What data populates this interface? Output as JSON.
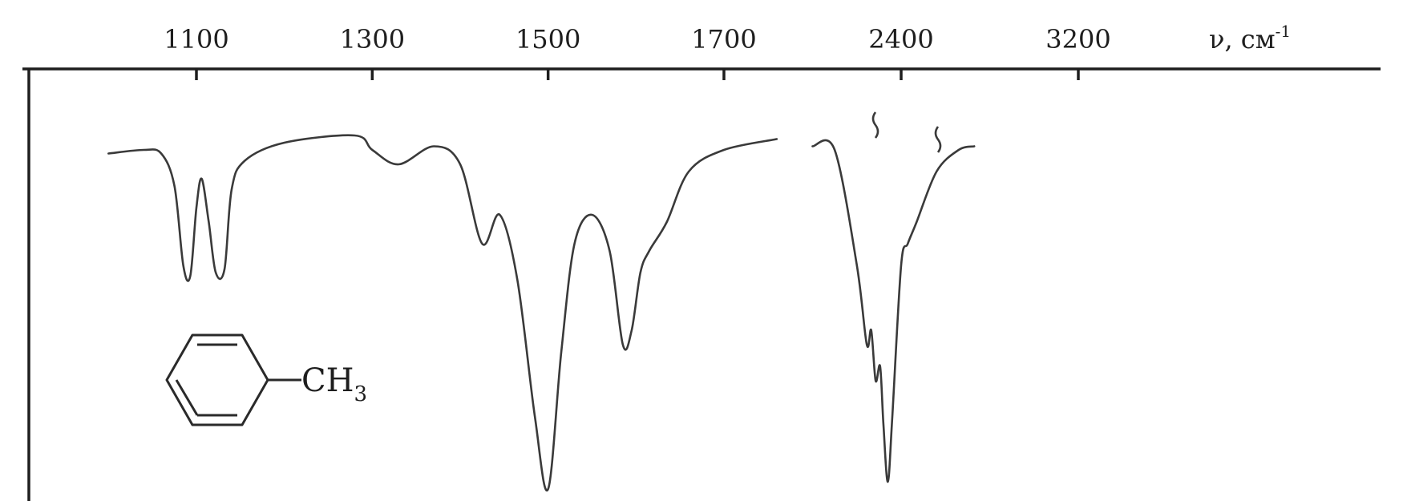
{
  "chart_data": {
    "type": "line",
    "title": "",
    "x_ticks": [
      "1100",
      "1300",
      "1500",
      "1700",
      "2400",
      "3200"
    ],
    "x_unit_prefix": "ν, см",
    "x_unit_superscript": "-1",
    "axis_break_between": [
      "1700",
      "2400"
    ],
    "series": [
      {
        "values_segment_1": [
          [
            1000,
            0.07
          ],
          [
            1040,
            0.06
          ],
          [
            1060,
            0.07
          ],
          [
            1075,
            0.16
          ],
          [
            1085,
            0.38
          ],
          [
            1093,
            0.41
          ],
          [
            1100,
            0.22
          ],
          [
            1106,
            0.14
          ],
          [
            1114,
            0.26
          ],
          [
            1122,
            0.4
          ],
          [
            1132,
            0.39
          ],
          [
            1140,
            0.17
          ],
          [
            1155,
            0.09
          ],
          [
            1200,
            0.04
          ],
          [
            1280,
            0.02
          ],
          [
            1300,
            0.06
          ],
          [
            1330,
            0.1
          ],
          [
            1370,
            0.05
          ],
          [
            1400,
            0.1
          ],
          [
            1425,
            0.32
          ],
          [
            1445,
            0.24
          ],
          [
            1465,
            0.42
          ],
          [
            1485,
            0.8
          ],
          [
            1500,
            1.0
          ],
          [
            1515,
            0.62
          ],
          [
            1530,
            0.32
          ],
          [
            1550,
            0.24
          ],
          [
            1570,
            0.34
          ],
          [
            1585,
            0.6
          ],
          [
            1595,
            0.56
          ],
          [
            1605,
            0.4
          ],
          [
            1615,
            0.34
          ],
          [
            1635,
            0.26
          ],
          [
            1660,
            0.12
          ],
          [
            1700,
            0.06
          ],
          [
            1760,
            0.03
          ]
        ],
        "values_segment_2": [
          [
            2000,
            0.05
          ],
          [
            2100,
            0.06
          ],
          [
            2200,
            0.38
          ],
          [
            2245,
            0.6
          ],
          [
            2265,
            0.56
          ],
          [
            2285,
            0.7
          ],
          [
            2305,
            0.66
          ],
          [
            2320,
            0.82
          ],
          [
            2340,
            0.98
          ],
          [
            2360,
            0.8
          ],
          [
            2400,
            0.38
          ],
          [
            2430,
            0.32
          ],
          [
            2470,
            0.26
          ],
          [
            2560,
            0.12
          ],
          [
            2660,
            0.06
          ],
          [
            2730,
            0.05
          ]
        ]
      }
    ],
    "y_axis_label": "",
    "grid": false,
    "legend": "none"
  },
  "annotation": {
    "structure": "toluene",
    "methyl_label": "CH",
    "methyl_subscript": "3"
  }
}
